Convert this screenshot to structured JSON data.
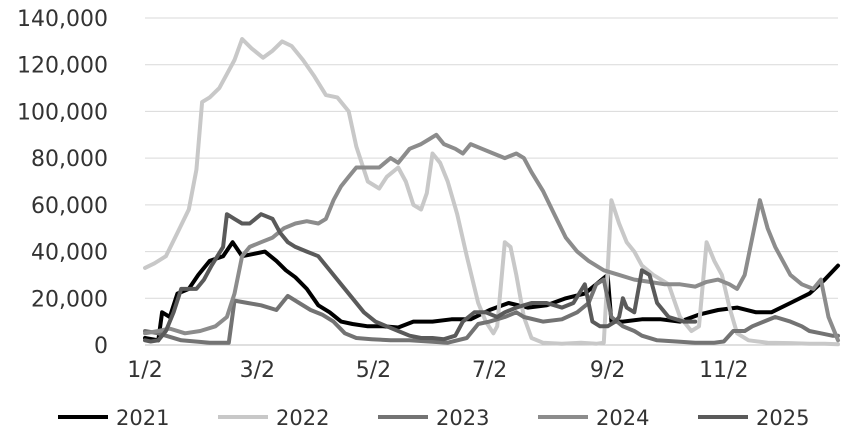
{
  "chart_data": {
    "type": "line",
    "title": "",
    "xlabel": "",
    "ylabel": "",
    "x_range": [
      1,
      365
    ],
    "ylim": [
      0,
      140000
    ],
    "grid": "horizontal",
    "legend_position": "bottom",
    "y_ticks": [
      {
        "value": 0,
        "label": "0"
      },
      {
        "value": 20000,
        "label": "20,000"
      },
      {
        "value": 40000,
        "label": "40,000"
      },
      {
        "value": 60000,
        "label": "60,000"
      },
      {
        "value": 80000,
        "label": "80,000"
      },
      {
        "value": 100000,
        "label": "100,000"
      },
      {
        "value": 120000,
        "label": "120,000"
      },
      {
        "value": 140000,
        "label": "140,000"
      }
    ],
    "x_ticks": [
      {
        "value": 1,
        "label": "1/2"
      },
      {
        "value": 60,
        "label": "3/2"
      },
      {
        "value": 121,
        "label": "5/2"
      },
      {
        "value": 182,
        "label": "7/2"
      },
      {
        "value": 244,
        "label": "9/2"
      },
      {
        "value": 305,
        "label": "11/2"
      }
    ],
    "series": [
      {
        "name": "2021",
        "color": "#000000",
        "points": [
          [
            1,
            3000
          ],
          [
            8,
            2000
          ],
          [
            10,
            14000
          ],
          [
            14,
            12000
          ],
          [
            18,
            22000
          ],
          [
            24,
            24000
          ],
          [
            29,
            30000
          ],
          [
            35,
            36000
          ],
          [
            42,
            38000
          ],
          [
            47,
            44000
          ],
          [
            52,
            38000
          ],
          [
            58,
            39000
          ],
          [
            64,
            40000
          ],
          [
            70,
            36000
          ],
          [
            75,
            32000
          ],
          [
            80,
            29000
          ],
          [
            86,
            24000
          ],
          [
            92,
            17000
          ],
          [
            98,
            14000
          ],
          [
            104,
            10000
          ],
          [
            110,
            9000
          ],
          [
            118,
            8000
          ],
          [
            126,
            8000
          ],
          [
            134,
            7500
          ],
          [
            142,
            10000
          ],
          [
            152,
            10000
          ],
          [
            162,
            11000
          ],
          [
            172,
            11000
          ],
          [
            182,
            15000
          ],
          [
            192,
            18000
          ],
          [
            202,
            16000
          ],
          [
            212,
            17000
          ],
          [
            222,
            20000
          ],
          [
            232,
            22000
          ],
          [
            238,
            26000
          ],
          [
            244,
            30000
          ],
          [
            246,
            10000
          ],
          [
            252,
            10000
          ],
          [
            262,
            11000
          ],
          [
            272,
            11000
          ],
          [
            282,
            10000
          ],
          [
            292,
            13000
          ],
          [
            302,
            15000
          ],
          [
            312,
            16000
          ],
          [
            322,
            14000
          ],
          [
            330,
            14000
          ],
          [
            340,
            18000
          ],
          [
            350,
            22000
          ],
          [
            358,
            28000
          ],
          [
            365,
            34000
          ]
        ]
      },
      {
        "name": "2022",
        "color": "#c8c8c8",
        "points": [
          [
            1,
            33000
          ],
          [
            6,
            35000
          ],
          [
            12,
            38000
          ],
          [
            18,
            48000
          ],
          [
            24,
            58000
          ],
          [
            28,
            75000
          ],
          [
            31,
            104000
          ],
          [
            35,
            106000
          ],
          [
            40,
            110000
          ],
          [
            44,
            116000
          ],
          [
            48,
            122000
          ],
          [
            52,
            131000
          ],
          [
            57,
            127000
          ],
          [
            63,
            123000
          ],
          [
            68,
            126000
          ],
          [
            73,
            130000
          ],
          [
            78,
            128000
          ],
          [
            84,
            122000
          ],
          [
            90,
            115000
          ],
          [
            96,
            107000
          ],
          [
            102,
            106000
          ],
          [
            108,
            100000
          ],
          [
            112,
            85000
          ],
          [
            118,
            70000
          ],
          [
            124,
            67000
          ],
          [
            128,
            72000
          ],
          [
            134,
            76000
          ],
          [
            138,
            70000
          ],
          [
            142,
            60000
          ],
          [
            146,
            58000
          ],
          [
            149,
            65000
          ],
          [
            152,
            82000
          ],
          [
            156,
            78000
          ],
          [
            160,
            70000
          ],
          [
            165,
            56000
          ],
          [
            170,
            38000
          ],
          [
            176,
            18000
          ],
          [
            180,
            10000
          ],
          [
            184,
            5000
          ],
          [
            186,
            8000
          ],
          [
            190,
            44000
          ],
          [
            193,
            42000
          ],
          [
            196,
            30000
          ],
          [
            200,
            12000
          ],
          [
            204,
            3000
          ],
          [
            210,
            1000
          ],
          [
            220,
            500
          ],
          [
            230,
            1000
          ],
          [
            238,
            500
          ],
          [
            242,
            1000
          ],
          [
            246,
            62000
          ],
          [
            250,
            52000
          ],
          [
            254,
            44000
          ],
          [
            258,
            40000
          ],
          [
            262,
            34000
          ],
          [
            268,
            30000
          ],
          [
            272,
            28000
          ],
          [
            276,
            26000
          ],
          [
            282,
            12000
          ],
          [
            288,
            6000
          ],
          [
            292,
            8000
          ],
          [
            296,
            44000
          ],
          [
            300,
            36000
          ],
          [
            304,
            30000
          ],
          [
            308,
            16000
          ],
          [
            312,
            5000
          ],
          [
            318,
            2000
          ],
          [
            328,
            1000
          ],
          [
            340,
            800
          ],
          [
            350,
            500
          ],
          [
            358,
            500
          ],
          [
            365,
            300
          ]
        ]
      },
      {
        "name": "2023",
        "color": "#737373",
        "points": [
          [
            1,
            6000
          ],
          [
            8,
            5000
          ],
          [
            12,
            4000
          ],
          [
            20,
            2000
          ],
          [
            35,
            1000
          ],
          [
            45,
            1000
          ],
          [
            48,
            19000
          ],
          [
            55,
            18000
          ],
          [
            62,
            17000
          ],
          [
            70,
            15000
          ],
          [
            76,
            21000
          ],
          [
            82,
            18000
          ],
          [
            88,
            15000
          ],
          [
            94,
            13000
          ],
          [
            100,
            10000
          ],
          [
            106,
            5000
          ],
          [
            112,
            3000
          ],
          [
            120,
            2500
          ],
          [
            130,
            2000
          ],
          [
            140,
            2000
          ],
          [
            150,
            1500
          ],
          [
            160,
            1000
          ],
          [
            170,
            3000
          ],
          [
            176,
            9000
          ],
          [
            182,
            10000
          ],
          [
            190,
            12000
          ],
          [
            196,
            14000
          ],
          [
            200,
            12000
          ],
          [
            210,
            10000
          ],
          [
            220,
            11000
          ],
          [
            228,
            14000
          ],
          [
            234,
            18000
          ],
          [
            238,
            26000
          ],
          [
            242,
            28000
          ],
          [
            246,
            12000
          ],
          [
            252,
            8000
          ],
          [
            258,
            6000
          ],
          [
            262,
            4000
          ],
          [
            270,
            2000
          ],
          [
            280,
            1500
          ],
          [
            290,
            1000
          ],
          [
            300,
            1000
          ],
          [
            305,
            1500
          ],
          [
            310,
            6000
          ],
          [
            316,
            6000
          ],
          [
            320,
            8000
          ],
          [
            326,
            10000
          ],
          [
            332,
            12000
          ],
          [
            340,
            10000
          ],
          [
            346,
            8000
          ],
          [
            350,
            6000
          ],
          [
            356,
            5000
          ],
          [
            362,
            4000
          ],
          [
            365,
            4000
          ]
        ]
      },
      {
        "name": "2024",
        "color": "#8c8c8c",
        "points": [
          [
            1,
            5000
          ],
          [
            8,
            6000
          ],
          [
            14,
            7000
          ],
          [
            22,
            5000
          ],
          [
            30,
            6000
          ],
          [
            38,
            8000
          ],
          [
            44,
            12000
          ],
          [
            48,
            22000
          ],
          [
            52,
            38000
          ],
          [
            56,
            42000
          ],
          [
            62,
            44000
          ],
          [
            68,
            46000
          ],
          [
            74,
            50000
          ],
          [
            80,
            52000
          ],
          [
            86,
            53000
          ],
          [
            92,
            52000
          ],
          [
            96,
            54000
          ],
          [
            100,
            62000
          ],
          [
            104,
            68000
          ],
          [
            108,
            72000
          ],
          [
            112,
            76000
          ],
          [
            118,
            76000
          ],
          [
            124,
            76000
          ],
          [
            130,
            80000
          ],
          [
            134,
            78000
          ],
          [
            140,
            84000
          ],
          [
            146,
            86000
          ],
          [
            150,
            88000
          ],
          [
            154,
            90000
          ],
          [
            158,
            86000
          ],
          [
            164,
            84000
          ],
          [
            168,
            82000
          ],
          [
            172,
            86000
          ],
          [
            178,
            84000
          ],
          [
            184,
            82000
          ],
          [
            190,
            80000
          ],
          [
            196,
            82000
          ],
          [
            200,
            80000
          ],
          [
            204,
            74000
          ],
          [
            210,
            66000
          ],
          [
            216,
            56000
          ],
          [
            222,
            46000
          ],
          [
            228,
            40000
          ],
          [
            234,
            36000
          ],
          [
            242,
            32000
          ],
          [
            250,
            30000
          ],
          [
            258,
            28000
          ],
          [
            266,
            27000
          ],
          [
            274,
            26000
          ],
          [
            282,
            26000
          ],
          [
            290,
            25000
          ],
          [
            296,
            27000
          ],
          [
            302,
            28000
          ],
          [
            308,
            26000
          ],
          [
            312,
            24000
          ],
          [
            316,
            30000
          ],
          [
            320,
            46000
          ],
          [
            324,
            62000
          ],
          [
            328,
            50000
          ],
          [
            332,
            42000
          ],
          [
            336,
            36000
          ],
          [
            340,
            30000
          ],
          [
            346,
            26000
          ],
          [
            352,
            24000
          ],
          [
            356,
            28000
          ],
          [
            360,
            12000
          ],
          [
            365,
            2000
          ]
        ]
      },
      {
        "name": "2025",
        "color": "#5a5a5a",
        "points": [
          [
            1,
            2000
          ],
          [
            4,
            1500
          ],
          [
            8,
            2000
          ],
          [
            12,
            6000
          ],
          [
            16,
            14000
          ],
          [
            20,
            24000
          ],
          [
            24,
            24000
          ],
          [
            28,
            24000
          ],
          [
            32,
            28000
          ],
          [
            36,
            34000
          ],
          [
            42,
            42000
          ],
          [
            44,
            56000
          ],
          [
            48,
            54000
          ],
          [
            52,
            52000
          ],
          [
            56,
            52000
          ],
          [
            62,
            56000
          ],
          [
            68,
            54000
          ],
          [
            72,
            48000
          ],
          [
            76,
            44000
          ],
          [
            80,
            42000
          ],
          [
            86,
            40000
          ],
          [
            92,
            38000
          ],
          [
            98,
            32000
          ],
          [
            104,
            26000
          ],
          [
            110,
            20000
          ],
          [
            116,
            14000
          ],
          [
            122,
            10000
          ],
          [
            128,
            8000
          ],
          [
            134,
            6000
          ],
          [
            140,
            4000
          ],
          [
            146,
            3000
          ],
          [
            152,
            3000
          ],
          [
            158,
            2500
          ],
          [
            164,
            4000
          ],
          [
            168,
            10000
          ],
          [
            174,
            14000
          ],
          [
            180,
            14000
          ],
          [
            186,
            12000
          ],
          [
            190,
            14000
          ],
          [
            196,
            16000
          ],
          [
            204,
            18000
          ],
          [
            212,
            18000
          ],
          [
            220,
            16000
          ],
          [
            226,
            18000
          ],
          [
            232,
            26000
          ],
          [
            236,
            10000
          ],
          [
            240,
            8000
          ],
          [
            244,
            8000
          ],
          [
            248,
            10000
          ],
          [
            250,
            12000
          ],
          [
            252,
            20000
          ],
          [
            254,
            16000
          ],
          [
            258,
            14000
          ],
          [
            262,
            32000
          ],
          [
            266,
            30000
          ],
          [
            270,
            18000
          ],
          [
            276,
            12000
          ],
          [
            284,
            10000
          ],
          [
            290,
            10000
          ]
        ]
      }
    ]
  }
}
